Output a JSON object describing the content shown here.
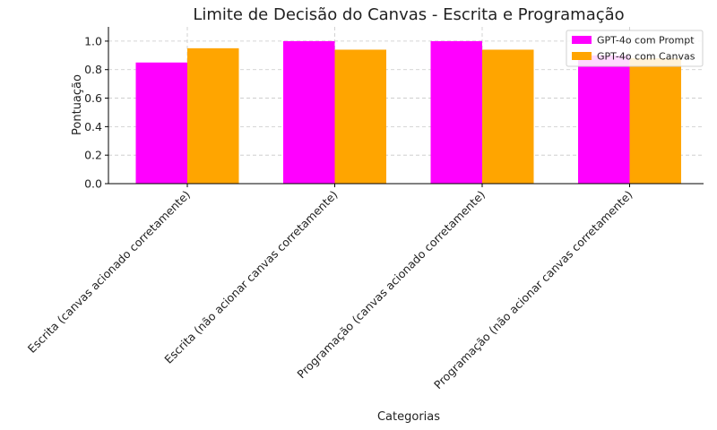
{
  "chart_data": {
    "type": "bar",
    "title": "Limite de Decisão do Canvas - Escrita e Programação",
    "xlabel": "Categorias",
    "ylabel": "Pontuação",
    "ylim": [
      0,
      1.1
    ],
    "yticks": [
      0.0,
      0.2,
      0.4,
      0.6,
      0.8,
      1.0
    ],
    "ytick_labels": [
      "0.0",
      "0.2",
      "0.4",
      "0.6",
      "0.8",
      "1.0"
    ],
    "grid": true,
    "legend_position": "top-right",
    "categories": [
      "Escrita (canvas acionado corretamente)",
      "Escrita (não acionar canvas corretamente)",
      "Programação (canvas acionado corretamente)",
      "Programação (não acionar canvas corretamente)"
    ],
    "series": [
      {
        "name": "GPT-4o com Prompt",
        "color": "#ff00ff",
        "values": [
          0.85,
          1.0,
          1.0,
          0.9
        ]
      },
      {
        "name": "GPT-4o com Canvas",
        "color": "#ffa500",
        "values": [
          0.95,
          0.94,
          0.94,
          0.88
        ]
      }
    ]
  }
}
